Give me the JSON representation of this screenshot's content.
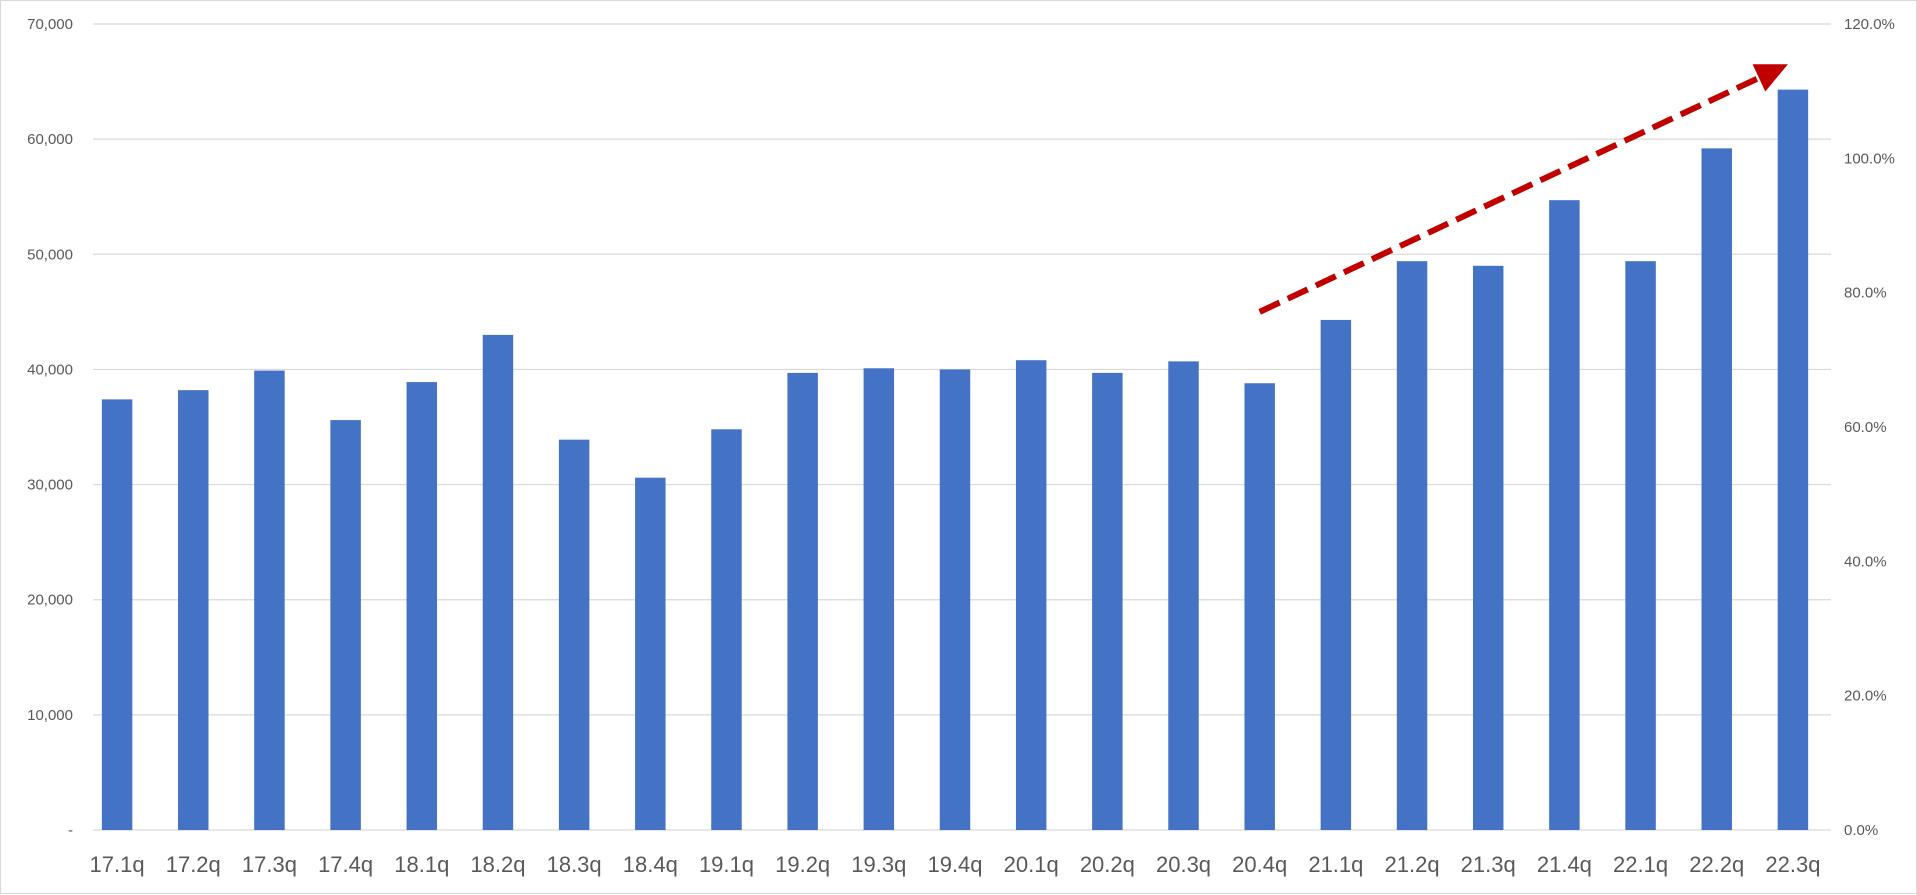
{
  "chart_data": {
    "type": "bar",
    "categories": [
      "17.1q",
      "17.2q",
      "17.3q",
      "17.4q",
      "18.1q",
      "18.2q",
      "18.3q",
      "18.4q",
      "19.1q",
      "19.2q",
      "19.3q",
      "19.4q",
      "20.1q",
      "20.2q",
      "20.3q",
      "20.4q",
      "21.1q",
      "21.2q",
      "21.3q",
      "21.4q",
      "22.1q",
      "22.2q",
      "22.3q"
    ],
    "series": [
      {
        "values": [
          37400,
          38200,
          39900,
          35600,
          38900,
          43000,
          33900,
          30600,
          34800,
          39700,
          40100,
          40000,
          40800,
          39700,
          40700,
          38800,
          44300,
          49400,
          49000,
          54700,
          49400,
          59200,
          64300
        ],
        "color": "#4472C4"
      }
    ],
    "y_left": {
      "ylim": [
        0,
        70000
      ],
      "tick_labels": [
        "-",
        "10,000",
        "20,000",
        "30,000",
        "40,000",
        "50,000",
        "60,000",
        "70,000"
      ]
    },
    "y_right": {
      "ylim": [
        0,
        120
      ],
      "tick_labels": [
        "0.0%",
        "20.0%",
        "40.0%",
        "60.0%",
        "80.0%",
        "100.0%",
        "120.0%"
      ]
    },
    "grid": true,
    "legend": "none",
    "annotation": {
      "type": "dashed-arrow",
      "color": "#C00000",
      "from": {
        "category": "20.4q",
        "y": 45000
      },
      "to": {
        "category": "22.3q",
        "y": 66500
      }
    },
    "colors": {
      "bar": "#4472C4",
      "gridline": "#d9d9d9",
      "axis_text": "#595959",
      "arrow": "#C00000"
    }
  }
}
